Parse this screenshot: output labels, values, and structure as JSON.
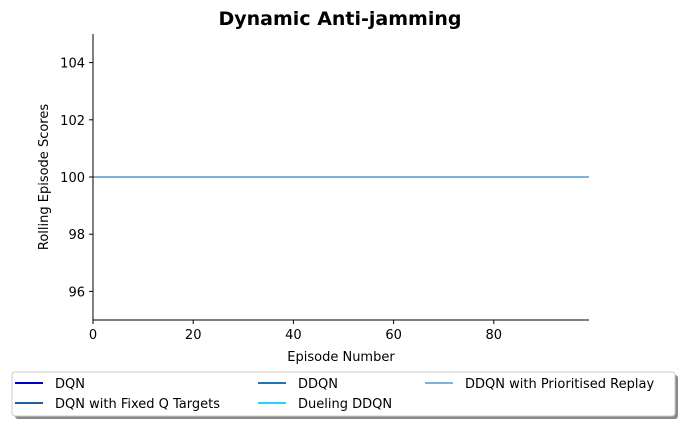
{
  "chart_data": {
    "type": "line",
    "title": "Dynamic Anti-jamming",
    "xlabel": "Episode Number",
    "ylabel": "Rolling Episode Scores",
    "xlim": [
      0,
      99
    ],
    "ylim": [
      95,
      105
    ],
    "xticks": [
      0,
      20,
      40,
      60,
      80
    ],
    "yticks": [
      96,
      98,
      100,
      102,
      104
    ],
    "grid": false,
    "legend_position": "bottom",
    "series": [
      {
        "name": "DQN",
        "color": "#0000CD",
        "x": [
          0,
          99
        ],
        "y": [
          100,
          100
        ]
      },
      {
        "name": "DQN with Fixed Q Targets",
        "color": "#1F5F9E",
        "x": [
          0,
          99
        ],
        "y": [
          100,
          100
        ]
      },
      {
        "name": "DDQN",
        "color": "#1F77B4",
        "x": [
          0,
          99
        ],
        "y": [
          100,
          100
        ]
      },
      {
        "name": "Dueling DDQN",
        "color": "#22D3FF",
        "x": [
          0,
          99
        ],
        "y": [
          100,
          100
        ]
      },
      {
        "name": "DDQN with Prioritised Replay",
        "color": "#7FB2D9",
        "x": [
          0,
          99
        ],
        "y": [
          100,
          100
        ]
      }
    ]
  }
}
